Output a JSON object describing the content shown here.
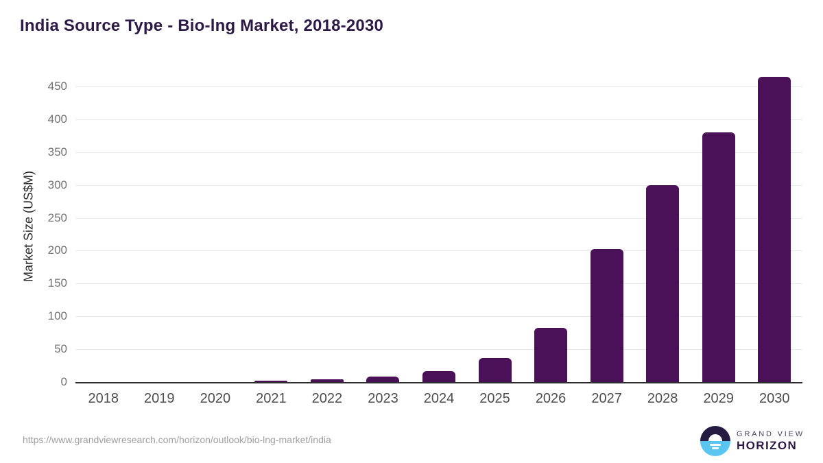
{
  "title": "India Source Type - Bio-lng Market, 2018-2030",
  "source_url": "https://www.grandviewresearch.com/horizon/outlook/bio-lng-market/india",
  "logo": {
    "top_text": "GRAND VIEW",
    "bottom_text": "HORIZON"
  },
  "colors": {
    "bar": "#4a1158",
    "title_text": "#2e1a47",
    "gridline": "#e8e8e8",
    "axis_line": "#2d2d2d",
    "y_tick_text": "#757575",
    "x_tick_text": "#4d4d4d",
    "source_url_text": "#9f9f9f",
    "logo_navy": "#261b40",
    "logo_blue": "#5bc5f2"
  },
  "chart_data": {
    "type": "bar",
    "categories": [
      "2018",
      "2019",
      "2020",
      "2021",
      "2022",
      "2023",
      "2024",
      "2025",
      "2026",
      "2027",
      "2028",
      "2029",
      "2030"
    ],
    "values": [
      0,
      0,
      0,
      2,
      4,
      8,
      17,
      37,
      83,
      203,
      300,
      380,
      465
    ],
    "title": "India Source Type - Bio-lng Market, 2018-2030",
    "xlabel": "",
    "ylabel": "Market Size (US$M)",
    "ylim": [
      0,
      450
    ],
    "ytick_step": 50,
    "yticks": [
      0,
      50,
      100,
      150,
      200,
      250,
      300,
      350,
      400,
      450
    ],
    "grid": "horizontal-only",
    "legend": "none",
    "series_color": "#4a1158"
  }
}
